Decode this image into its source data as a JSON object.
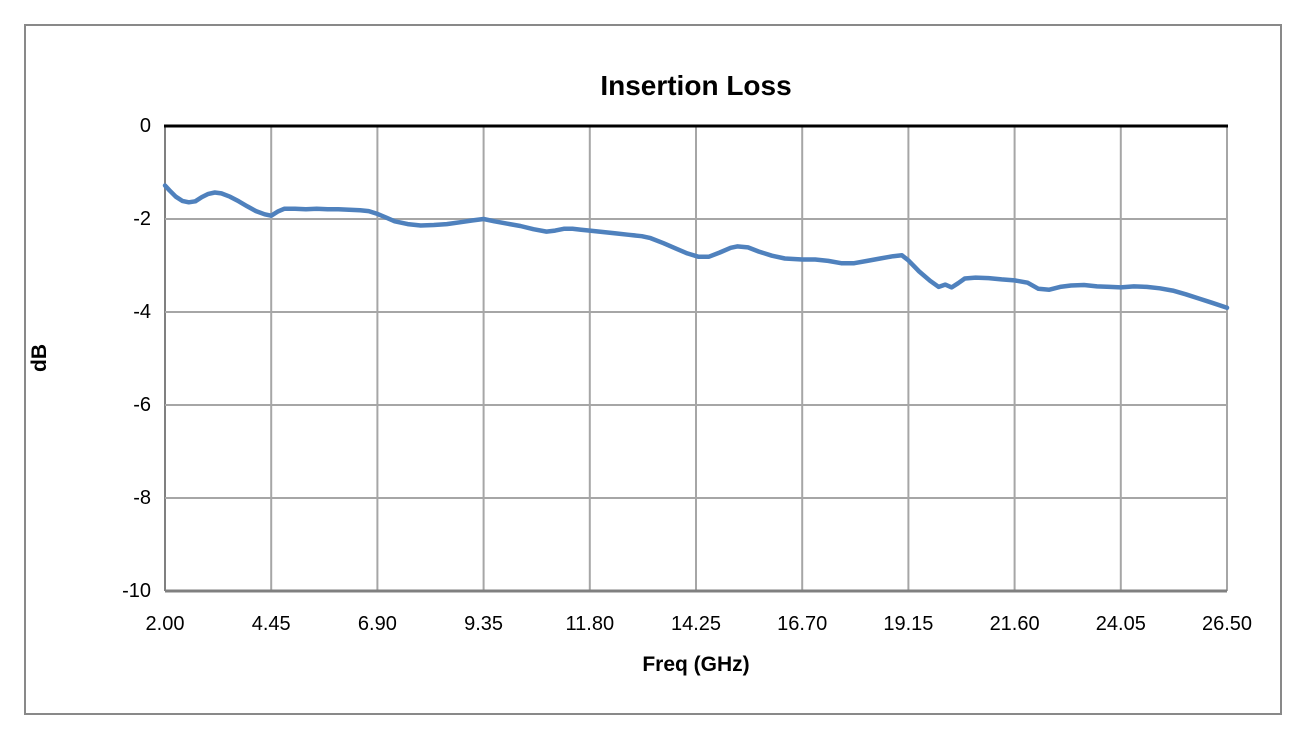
{
  "chart_data": {
    "type": "line",
    "title": "Insertion Loss",
    "xlabel": "Freq (GHz)",
    "ylabel": "dB",
    "xlim": [
      2.0,
      26.5
    ],
    "ylim": [
      -10,
      0
    ],
    "grid": true,
    "legend": false,
    "x_ticks": [
      "2.00",
      "4.45",
      "6.90",
      "9.35",
      "11.80",
      "14.25",
      "16.70",
      "19.15",
      "21.60",
      "24.05",
      "26.50"
    ],
    "y_ticks": [
      "0",
      "-2",
      "-4",
      "-6",
      "-8",
      "-10"
    ],
    "series": [
      {
        "color": "#4F81BD",
        "x": [
          2.0,
          2.1,
          2.25,
          2.4,
          2.55,
          2.7,
          2.85,
          3.0,
          3.15,
          3.3,
          3.5,
          3.7,
          3.9,
          4.1,
          4.3,
          4.45,
          4.6,
          4.75,
          5.0,
          5.25,
          5.5,
          5.75,
          6.0,
          6.25,
          6.5,
          6.7,
          6.9,
          7.1,
          7.3,
          7.6,
          7.9,
          8.2,
          8.5,
          8.8,
          9.1,
          9.35,
          9.6,
          9.9,
          10.2,
          10.5,
          10.8,
          11.0,
          11.2,
          11.4,
          11.6,
          11.8,
          12.1,
          12.4,
          12.7,
          13.0,
          13.2,
          13.5,
          13.8,
          14.05,
          14.3,
          14.55,
          14.8,
          15.05,
          15.2,
          15.45,
          15.7,
          16.0,
          16.3,
          16.7,
          17.0,
          17.3,
          17.6,
          17.9,
          18.2,
          18.5,
          18.8,
          19.0,
          19.15,
          19.4,
          19.65,
          19.85,
          20.0,
          20.15,
          20.3,
          20.45,
          20.7,
          21.0,
          21.3,
          21.6,
          21.9,
          22.15,
          22.4,
          22.65,
          22.9,
          23.2,
          23.5,
          23.8,
          24.05,
          24.35,
          24.65,
          24.95,
          25.25,
          25.55,
          25.85,
          26.15,
          26.5
        ],
        "y": [
          -1.28,
          -1.38,
          -1.52,
          -1.61,
          -1.64,
          -1.62,
          -1.53,
          -1.46,
          -1.43,
          -1.45,
          -1.52,
          -1.62,
          -1.73,
          -1.83,
          -1.9,
          -1.93,
          -1.84,
          -1.78,
          -1.78,
          -1.79,
          -1.78,
          -1.79,
          -1.79,
          -1.8,
          -1.81,
          -1.83,
          -1.89,
          -1.97,
          -2.05,
          -2.11,
          -2.14,
          -2.13,
          -2.11,
          -2.07,
          -2.03,
          -2.0,
          -2.05,
          -2.1,
          -2.15,
          -2.22,
          -2.27,
          -2.25,
          -2.21,
          -2.21,
          -2.23,
          -2.25,
          -2.28,
          -2.31,
          -2.34,
          -2.37,
          -2.41,
          -2.52,
          -2.64,
          -2.74,
          -2.81,
          -2.81,
          -2.72,
          -2.62,
          -2.59,
          -2.61,
          -2.7,
          -2.79,
          -2.85,
          -2.87,
          -2.87,
          -2.9,
          -2.95,
          -2.95,
          -2.9,
          -2.85,
          -2.8,
          -2.78,
          -2.89,
          -3.13,
          -3.33,
          -3.46,
          -3.41,
          -3.47,
          -3.38,
          -3.28,
          -3.26,
          -3.27,
          -3.3,
          -3.32,
          -3.37,
          -3.5,
          -3.52,
          -3.46,
          -3.43,
          -3.42,
          -3.45,
          -3.46,
          -3.47,
          -3.45,
          -3.46,
          -3.49,
          -3.54,
          -3.62,
          -3.71,
          -3.8,
          -3.91
        ]
      }
    ]
  },
  "colors": {
    "line": "#4F81BD",
    "gridline": "#A6A6A6",
    "axis_frame": "#808080",
    "zero_axis": "#000000",
    "outer_border": "#898989",
    "background": "#FFFFFF",
    "text": "#000000"
  }
}
